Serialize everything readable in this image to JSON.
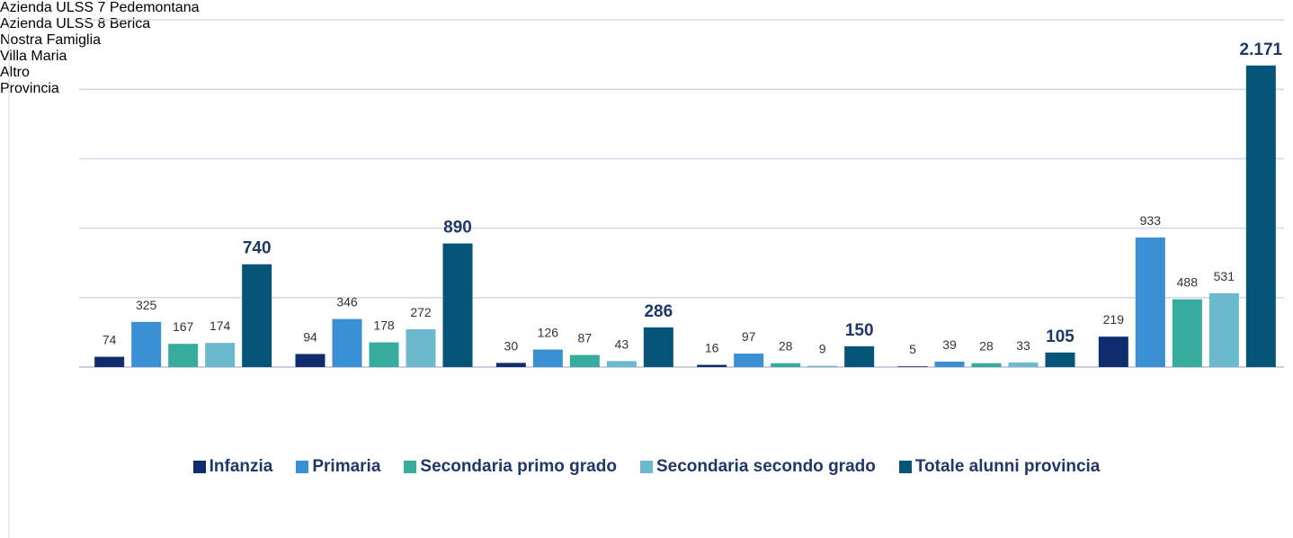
{
  "chart_data": {
    "type": "bar",
    "categories": [
      "Azienda ULSS 7 Pedemontana",
      "Azienda ULSS 8 Berica",
      "Nostra Famiglia",
      "Villa Maria",
      "Altro",
      "Provincia"
    ],
    "series": [
      {
        "name": "Infanzia",
        "color": "#0f2d6e",
        "values": [
          74,
          94,
          30,
          16,
          5,
          219
        ]
      },
      {
        "name": "Primaria",
        "color": "#3a90d2",
        "values": [
          325,
          346,
          126,
          97,
          39,
          933
        ]
      },
      {
        "name": "Secondaria primo grado",
        "color": "#37ab9e",
        "values": [
          167,
          178,
          87,
          28,
          28,
          488
        ]
      },
      {
        "name": "Secondaria secondo grado",
        "color": "#6cb8cc",
        "values": [
          174,
          272,
          43,
          9,
          33,
          531
        ]
      },
      {
        "name": "Totale alunni provincia",
        "color": "#065478",
        "values": [
          740,
          890,
          286,
          150,
          105,
          2171
        ],
        "value_labels": [
          "740",
          "890",
          "286",
          "150",
          "105",
          "2.171"
        ]
      }
    ],
    "ylim": [
      0,
      2500
    ],
    "yticks": [
      0,
      500,
      1000,
      1500,
      2000,
      2500
    ],
    "grid": true,
    "legend": "bottom"
  }
}
